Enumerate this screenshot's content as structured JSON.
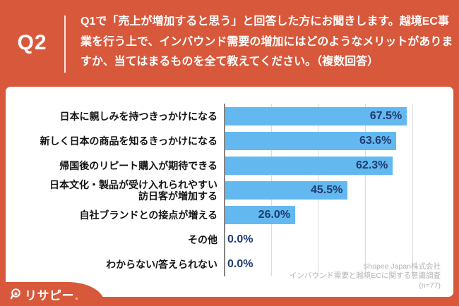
{
  "header": {
    "question_number": "Q2",
    "question_text": "Q1で「売上が増加すると思う」と回答した方にお聞きします。越境EC事業を行う上で、インバウンド需要の増加にはどのようなメリットがありますか、当てはまるものを全て教えてください。（複数回答）"
  },
  "chart_data": {
    "type": "bar",
    "orientation": "horizontal",
    "categories": [
      "日本に親しみを持つきっかけになる",
      "新しく日本の商品を知るきっかけになる",
      "帰国後のリピート購入が期待できる",
      "日本文化・製品が受け入れられやすい\n訪日客が増加する",
      "自社ブランドとの接点が増える",
      "その他",
      "わからない/答えられない"
    ],
    "values": [
      67.5,
      63.6,
      62.3,
      45.5,
      26.0,
      0.0,
      0.0
    ],
    "value_labels": [
      "67.5%",
      "63.6%",
      "62.3%",
      "45.5%",
      "26.0%",
      "0.0%",
      "0.0%"
    ],
    "axis": {
      "min": 0,
      "gridline_step_pct": 17.5,
      "gridline_max_pct": 70,
      "tick_labels_visible": false,
      "grid": true
    },
    "bar_color": "#63B8F0",
    "value_label_color": "#1F3C6E",
    "n": 77
  },
  "source": {
    "line1": "Shopee Japan株式会社",
    "line2": "インバウンド需要と越境ECに関する意識調査",
    "line3": "(n=77)"
  },
  "logo": {
    "text": "リサピー"
  },
  "colors": {
    "accent_orange": "#D8583C",
    "panel_white": "#FFFFFF",
    "gridline_gray": "#DBDBDB",
    "source_gray": "#B2B2B2"
  }
}
